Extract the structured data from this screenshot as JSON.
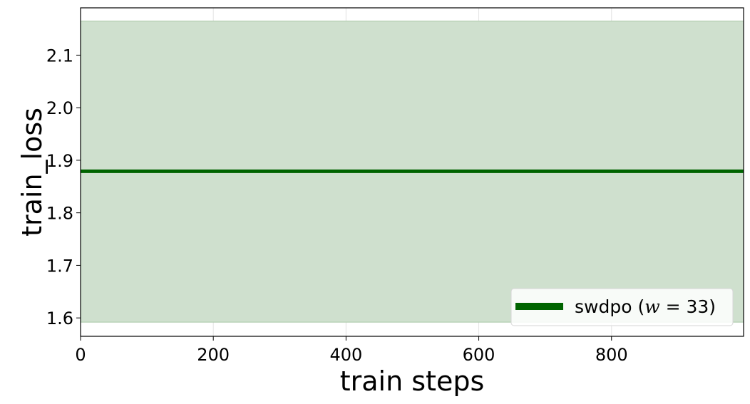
{
  "chart_data": {
    "type": "line",
    "title": "",
    "xlabel": "train steps",
    "ylabel": "train_loss",
    "xlim": [
      0,
      999
    ],
    "ylim": [
      1.565,
      2.19
    ],
    "xticks": [
      0,
      200,
      400,
      600,
      800
    ],
    "xtick_labels": [
      "0",
      "200",
      "400",
      "600",
      "800"
    ],
    "yticks": [
      1.6,
      1.7,
      1.8,
      1.9,
      2.0,
      2.1
    ],
    "ytick_labels": [
      "1.6",
      "1.7",
      "1.8",
      "1.9",
      "2.0",
      "2.1"
    ],
    "grid": true,
    "legend_position": "lower-right",
    "series": [
      {
        "name": "swdpo (w = 33)",
        "legend_prefix": "swdpo (",
        "legend_var": "w",
        "legend_suffix": " = 33)",
        "color": "#006400",
        "band_color": "#cfe0ce",
        "x": [
          0,
          999
        ],
        "y": [
          1.879,
          1.879
        ],
        "band_lower": [
          1.592,
          1.592
        ],
        "band_upper": [
          2.165,
          2.165
        ]
      }
    ]
  }
}
